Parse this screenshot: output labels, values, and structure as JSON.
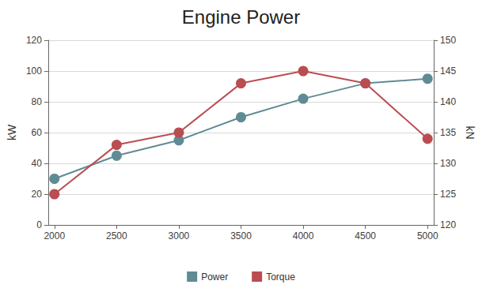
{
  "chart_data": {
    "type": "line",
    "title": "Engine Power",
    "x": [
      2000,
      2500,
      3000,
      3500,
      4000,
      4500,
      5000
    ],
    "xlim": [
      1950,
      5050
    ],
    "xticks": [
      2000,
      2500,
      3000,
      3500,
      4000,
      4500,
      5000
    ],
    "y_label": "kW",
    "ylim": [
      0,
      120
    ],
    "yticks": [
      0,
      20,
      40,
      60,
      80,
      100,
      120
    ],
    "y2_label": "kN",
    "y2lim": [
      120,
      150
    ],
    "y2ticks": [
      120,
      125,
      130,
      135,
      140,
      145,
      150
    ],
    "grid": true,
    "legend": "bottom",
    "series": [
      {
        "name": "Power",
        "color": "#5f8b95",
        "marker": "circle",
        "values": [
          30,
          45,
          55,
          70,
          82,
          92,
          95
        ]
      },
      {
        "name": "Torque",
        "color": "#ba4d51",
        "marker": "circle",
        "axis": "y2",
        "values": [
          125,
          133,
          135,
          143,
          145,
          143,
          134
        ]
      }
    ]
  }
}
